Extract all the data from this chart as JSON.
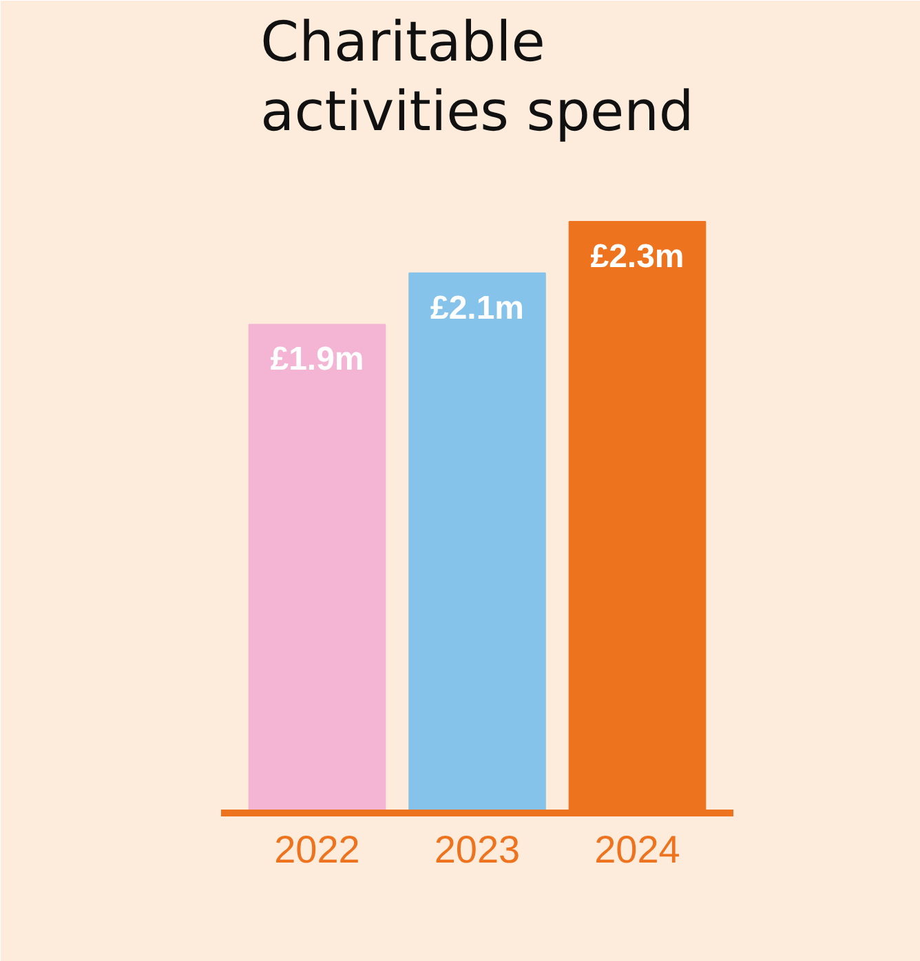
{
  "chart_data": {
    "type": "bar",
    "title": "Charitable activities spend",
    "categories": [
      "2022",
      "2023",
      "2024"
    ],
    "values": [
      1.9,
      2.1,
      2.3
    ],
    "colors": [
      "#f3b5d3",
      "#86c3ea",
      "#ee731e"
    ],
    "value_labels": [
      "£1.9m",
      "£2.1m",
      "£2.3m"
    ],
    "grid": false
  }
}
